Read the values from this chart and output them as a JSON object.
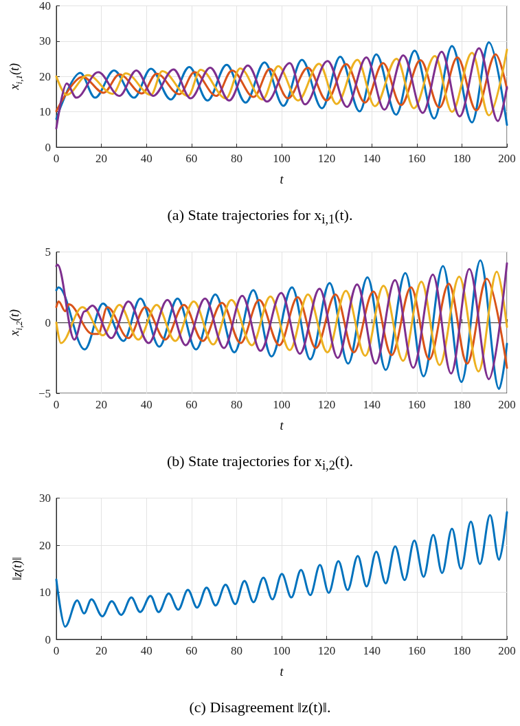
{
  "chart_data": [
    {
      "type": "line",
      "xlabel": "t",
      "ylabel": "x$_{i,1}$(t)",
      "annotations": [
        "(a) State trajectories for x$_{i,1}$(t)."
      ],
      "xlim": [
        0,
        200
      ],
      "xticks": [
        0,
        20,
        40,
        60,
        80,
        100,
        120,
        140,
        160,
        180,
        200
      ],
      "ylim": [
        0,
        40
      ],
      "yticks": [
        0,
        10,
        20,
        30,
        40
      ],
      "grid": true,
      "marker": "none",
      "line_style": "solid",
      "series": [
        {
          "color": "#0072bd",
          "x": [
            0,
            10.6,
            17.2,
            25.6,
            34.5,
            42,
            50.8,
            59,
            67.1,
            75.6,
            84,
            92.4,
            100.8,
            109,
            117.9,
            126,
            134.6,
            142,
            150.8,
            159,
            167.7,
            175.6,
            184.5,
            192,
            200
          ],
          "values": [
            8,
            21,
            14,
            21.7,
            14,
            22.2,
            13.5,
            22.7,
            13.2,
            23.3,
            12.6,
            24,
            11.7,
            24.7,
            11,
            25.6,
            10.1,
            26.3,
            9.2,
            27.3,
            8.1,
            28.6,
            7,
            29.7,
            6.3
          ]
        },
        {
          "color": "#d95319",
          "x": [
            0,
            11.6,
            21,
            28,
            38,
            44.5,
            54.6,
            61.3,
            71,
            78,
            87.6,
            94.8,
            102.8,
            111.6,
            120,
            128.6,
            137,
            145,
            153,
            161.6,
            170,
            178,
            186.4,
            195,
            200
          ],
          "values": [
            10.2,
            19.9,
            15.4,
            20.6,
            15.2,
            20.8,
            15,
            21.2,
            14.5,
            21.7,
            14.2,
            22.2,
            13.8,
            22.5,
            13.2,
            23.5,
            12.6,
            23.8,
            11.9,
            24.6,
            11.2,
            25.4,
            10.4,
            26.3,
            16.5
          ]
        },
        {
          "color": "#edb120",
          "x": [
            0,
            4.5,
            14,
            25,
            30.8,
            42,
            47,
            58.5,
            64,
            75.3,
            81.6,
            91.5,
            98.5,
            107.3,
            116.6,
            124.4,
            133.6,
            141.4,
            151,
            158.7,
            168,
            175.6,
            184.5,
            192,
            200
          ],
          "values": [
            20,
            14.8,
            20.4,
            15.1,
            20.9,
            14.8,
            21.5,
            14.5,
            21.9,
            13.8,
            22.3,
            13.5,
            22.9,
            13.2,
            23.6,
            12.2,
            24.7,
            11.6,
            25,
            11,
            25.8,
            10,
            26.7,
            9,
            27.6
          ]
        },
        {
          "color": "#7e2f8e",
          "x": [
            0,
            4.6,
            8.9,
            18.6,
            28,
            35.5,
            43,
            52,
            59.6,
            68.3,
            76.7,
            85,
            93.5,
            103.6,
            110.4,
            120.4,
            129,
            137.6,
            145.6,
            154,
            162.6,
            171,
            179,
            187.6,
            196,
            200
          ],
          "values": [
            5.3,
            18,
            14,
            21.2,
            14.5,
            21.7,
            14.5,
            22,
            13.8,
            22.5,
            13.2,
            23.1,
            12.9,
            23.8,
            12.1,
            24.4,
            11.4,
            25.4,
            10.6,
            26,
            9.7,
            27,
            8.7,
            28,
            7.4,
            17
          ]
        }
      ]
    },
    {
      "type": "line",
      "xlabel": "t",
      "ylabel": "x$_{i,2}$(t)",
      "annotations": [
        "(b) State trajectories for x$_{i,2}$(t)."
      ],
      "xlim": [
        0,
        200
      ],
      "xticks": [
        0,
        20,
        40,
        60,
        80,
        100,
        120,
        140,
        160,
        180,
        200
      ],
      "ylim": [
        -5,
        5
      ],
      "yticks": [
        -5,
        0,
        5
      ],
      "grid": true,
      "marker": "none",
      "line_style": "solid",
      "series": [
        {
          "color": "#0072bd",
          "x": [
            0,
            1,
            12.6,
            20.7,
            29.8,
            37.3,
            45.7,
            53.8,
            62,
            70.6,
            79,
            87.4,
            95.5,
            104.6,
            112.7,
            121.3,
            129.5,
            138.1,
            146.2,
            154.9,
            163,
            171.6,
            179.8,
            188.2,
            196.5,
            200
          ],
          "values": [
            2.3,
            2.5,
            -1.9,
            1.35,
            -1.3,
            1.7,
            -1.7,
            1.7,
            -1.9,
            2,
            -2.1,
            2.3,
            -2.4,
            2.5,
            -2.6,
            2.8,
            -2.9,
            3.2,
            -3.35,
            3.5,
            -3.8,
            4,
            -4.2,
            4.4,
            -4.7,
            -1.5
          ]
        },
        {
          "color": "#d95319",
          "x": [
            0,
            1,
            4,
            5.5,
            16,
            18.6,
            22.6,
            32,
            39.5,
            48.3,
            56.6,
            65,
            73.5,
            81.8,
            90,
            99,
            107.1,
            115.2,
            123.9,
            132,
            140.7,
            148.8,
            157.4,
            165.5,
            174.2,
            182.3,
            191,
            200
          ],
          "values": [
            1.1,
            1.5,
            0.8,
            1.3,
            -0.8,
            -0.8,
            1.1,
            -1.1,
            1.1,
            -1.2,
            1.25,
            -1.3,
            1.4,
            -1.45,
            1.6,
            -1.6,
            1.8,
            -1.8,
            2,
            -2.1,
            2.2,
            -2.3,
            2.5,
            -2.6,
            2.75,
            -2.9,
            3.1,
            -3.2
          ]
        },
        {
          "color": "#edb120",
          "x": [
            0,
            2,
            11.6,
            20.7,
            28,
            36.4,
            44.5,
            52.8,
            61,
            69.6,
            77.7,
            86.8,
            95,
            103.6,
            111.7,
            120.3,
            128.5,
            137.1,
            145.2,
            153.9,
            162,
            170.1,
            178.8,
            187.4,
            195.5,
            200
          ],
          "values": [
            0,
            -1.45,
            1.1,
            -0.9,
            1.25,
            -1.2,
            1.25,
            -1.3,
            1.5,
            -1.55,
            1.6,
            -1.6,
            1.85,
            -1.95,
            2,
            -2.1,
            2.25,
            -2.35,
            2.6,
            -2.7,
            2.9,
            -3,
            3.25,
            -3.45,
            3.6,
            -0.3
          ]
        },
        {
          "color": "#7e2f8e",
          "x": [
            0,
            0.5,
            8,
            12.6,
            16,
            24.4,
            32,
            41,
            49.3,
            57.4,
            66,
            74.4,
            82.5,
            90.6,
            99.8,
            108.1,
            116.8,
            124.9,
            133.5,
            141.7,
            150.3,
            158.4,
            167.1,
            175.2,
            183.3,
            192,
            200
          ],
          "values": [
            4,
            4.1,
            -1.2,
            0.8,
            1.2,
            -1.1,
            1.5,
            -1.45,
            1.6,
            -1.6,
            1.7,
            -1.8,
            1.9,
            -2,
            2.1,
            -2.2,
            2.4,
            -2.5,
            2.7,
            -2.9,
            3,
            -3.2,
            3.4,
            -3.6,
            3.8,
            -4,
            4.2
          ]
        }
      ]
    },
    {
      "type": "line",
      "xlabel": "t",
      "ylabel": "‖z(t)‖",
      "annotations": [
        "(c) Disagreement ‖z(t)‖."
      ],
      "xlim": [
        0,
        200
      ],
      "xticks": [
        0,
        20,
        40,
        60,
        80,
        100,
        120,
        140,
        160,
        180,
        200
      ],
      "ylim": [
        0,
        30
      ],
      "yticks": [
        0,
        10,
        20,
        30
      ],
      "grid": true,
      "marker": "none",
      "line_style": "solid",
      "series": [
        {
          "color": "#0072bd",
          "x": [
            0,
            3.9,
            9.3,
            12.3,
            15.6,
            20.4,
            24.6,
            28.8,
            33.3,
            37.2,
            41.8,
            45.4,
            49.9,
            54.1,
            58.4,
            62.5,
            66.7,
            70.7,
            75.1,
            79.4,
            83.5,
            87.5,
            91.9,
            95.9,
            100.1,
            104.3,
            108.6,
            112.7,
            117,
            120.9,
            125.2,
            129.3,
            133.8,
            137.7,
            142,
            146.2,
            150.4,
            154.6,
            158.9,
            163,
            167.3,
            171.2,
            175.6,
            179.6,
            184,
            188,
            192.5,
            196.5,
            200
          ],
          "values": [
            12.7,
            2.7,
            8.3,
            5.5,
            8.5,
            4.9,
            8.1,
            5.2,
            8.9,
            5.8,
            9.25,
            5.8,
            9.75,
            6.3,
            10.5,
            6.75,
            11,
            7.2,
            11.6,
            7.5,
            12.4,
            7.9,
            13.1,
            8.5,
            13.9,
            8.9,
            14.75,
            9.4,
            15.8,
            9.9,
            16.6,
            10.5,
            17.7,
            11.25,
            18.6,
            11.9,
            19.75,
            12.6,
            21,
            13.3,
            22.2,
            14.1,
            23.5,
            15,
            25,
            16,
            26.4,
            16.9,
            27
          ]
        }
      ]
    }
  ]
}
